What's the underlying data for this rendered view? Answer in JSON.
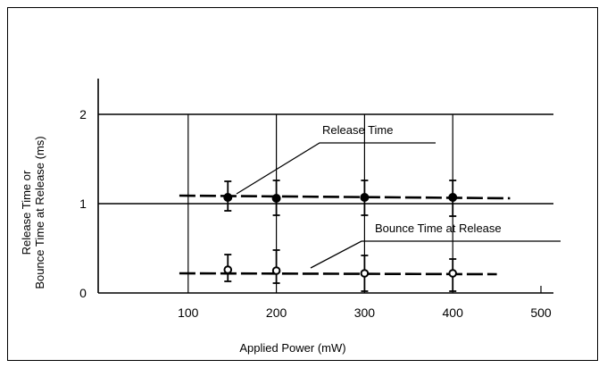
{
  "chart_data": {
    "type": "line",
    "xlabel": "Applied Power (mW)",
    "ylabel": [
      "Release Time or",
      "Bounce Time at Release (ms)"
    ],
    "xlim": [
      0,
      500
    ],
    "ylim": [
      0,
      2
    ],
    "x_ticks": [
      100,
      200,
      300,
      400,
      500
    ],
    "y_ticks": [
      0,
      1,
      2
    ],
    "grid": true,
    "series": [
      {
        "name": "Release Time",
        "x": [
          145,
          200,
          300,
          400
        ],
        "y": [
          1.07,
          1.06,
          1.07,
          1.07
        ],
        "err_low": [
          0.92,
          0.87,
          0.87,
          0.86
        ],
        "err_high": [
          1.25,
          1.26,
          1.26,
          1.26
        ],
        "marker": "filled-circle",
        "line_x": [
          90,
          465
        ],
        "line_y": [
          1.09,
          1.06
        ]
      },
      {
        "name": "Bounce Time at Release",
        "x": [
          145,
          200,
          300,
          400
        ],
        "y": [
          0.26,
          0.25,
          0.22,
          0.22
        ],
        "err_low": [
          0.13,
          0.11,
          0.02,
          0.02
        ],
        "err_high": [
          0.43,
          0.48,
          0.42,
          0.38
        ],
        "marker": "open-circle",
        "line_x": [
          90,
          450
        ],
        "line_y": [
          0.22,
          0.21
        ]
      }
    ]
  }
}
